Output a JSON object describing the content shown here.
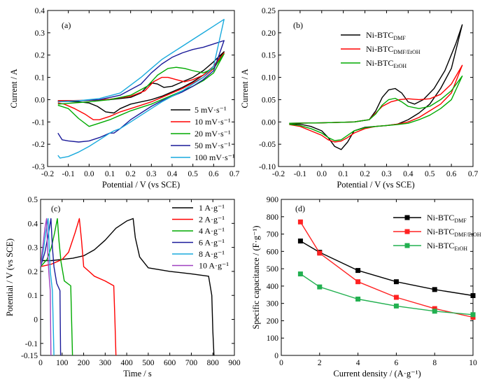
{
  "chart_data": [
    {
      "panel": "(a)",
      "type": "line",
      "xlabel": "Potential / V (vs SCE)",
      "ylabel": "Current / A",
      "xlim": [
        -0.2,
        0.7
      ],
      "ylim": [
        -0.3,
        0.4
      ],
      "xticks": [
        "-0.2",
        "-0.1",
        "0.0",
        "0.1",
        "0.2",
        "0.3",
        "0.4",
        "0.5",
        "0.6",
        "0.7"
      ],
      "yticks": [
        "-0.3",
        "-0.2",
        "-0.1",
        "0.0",
        "0.1",
        "0.2",
        "0.3",
        "0.4"
      ],
      "grid": false,
      "legend_position": "bottom-right",
      "series": [
        {
          "name": "5 mV·s⁻¹",
          "color": "#000000",
          "x": [
            -0.15,
            0.0,
            0.1,
            0.2,
            0.25,
            0.28,
            0.3,
            0.33,
            0.36,
            0.4,
            0.45,
            0.5,
            0.55,
            0.6,
            0.65,
            0.6,
            0.55,
            0.5,
            0.45,
            0.4,
            0.35,
            0.3,
            0.25,
            0.2,
            0.15,
            0.12,
            0.08,
            0.04,
            0.0,
            -0.05,
            -0.1,
            -0.15
          ],
          "y": [
            -0.005,
            -0.003,
            0.0,
            0.01,
            0.03,
            0.06,
            0.075,
            0.07,
            0.055,
            0.06,
            0.08,
            0.1,
            0.13,
            0.17,
            0.215,
            0.15,
            0.11,
            0.08,
            0.055,
            0.035,
            0.015,
            0.0,
            -0.01,
            -0.02,
            -0.04,
            -0.06,
            -0.055,
            -0.03,
            -0.015,
            -0.01,
            -0.008,
            -0.007
          ]
        },
        {
          "name": "10 mV·s⁻¹",
          "color": "#ff0000",
          "x": [
            -0.15,
            0.0,
            0.1,
            0.2,
            0.27,
            0.31,
            0.35,
            0.38,
            0.42,
            0.46,
            0.5,
            0.55,
            0.6,
            0.65,
            0.6,
            0.55,
            0.5,
            0.45,
            0.4,
            0.35,
            0.3,
            0.25,
            0.2,
            0.15,
            0.1,
            0.05,
            0.02,
            -0.02,
            -0.07,
            -0.12,
            -0.15
          ],
          "y": [
            -0.005,
            -0.003,
            0.002,
            0.015,
            0.04,
            0.08,
            0.1,
            0.1,
            0.09,
            0.08,
            0.09,
            0.11,
            0.15,
            0.21,
            0.14,
            0.1,
            0.075,
            0.05,
            0.03,
            0.01,
            -0.01,
            -0.025,
            -0.04,
            -0.055,
            -0.075,
            -0.09,
            -0.09,
            -0.065,
            -0.04,
            -0.02,
            -0.015
          ]
        },
        {
          "name": "20 mV·s⁻¹",
          "color": "#00aa00",
          "x": [
            -0.15,
            0.0,
            0.1,
            0.2,
            0.28,
            0.33,
            0.38,
            0.42,
            0.46,
            0.5,
            0.55,
            0.6,
            0.65,
            0.6,
            0.55,
            0.5,
            0.45,
            0.4,
            0.35,
            0.3,
            0.25,
            0.2,
            0.15,
            0.1,
            0.05,
            0.0,
            -0.05,
            -0.1,
            -0.15
          ],
          "y": [
            -0.02,
            -0.01,
            0.0,
            0.02,
            0.06,
            0.11,
            0.14,
            0.145,
            0.14,
            0.13,
            0.12,
            0.14,
            0.205,
            0.12,
            0.085,
            0.06,
            0.04,
            0.02,
            0.0,
            -0.02,
            -0.035,
            -0.05,
            -0.07,
            -0.09,
            -0.105,
            -0.12,
            -0.085,
            -0.04,
            -0.025
          ]
        },
        {
          "name": "50 mV·s⁻¹",
          "color": "#1a1a99",
          "x": [
            -0.15,
            -0.05,
            0.05,
            0.15,
            0.25,
            0.3,
            0.35,
            0.4,
            0.45,
            0.5,
            0.55,
            0.6,
            0.65,
            0.6,
            0.55,
            0.5,
            0.45,
            0.4,
            0.35,
            0.3,
            0.25,
            0.2,
            0.15,
            0.12,
            0.1,
            0.05,
            0.0,
            -0.05,
            -0.1,
            -0.13,
            -0.15
          ],
          "y": [
            -0.01,
            -0.005,
            0.0,
            0.02,
            0.07,
            0.12,
            0.16,
            0.19,
            0.21,
            0.225,
            0.235,
            0.25,
            0.265,
            0.13,
            0.09,
            0.06,
            0.035,
            0.015,
            -0.005,
            -0.03,
            -0.06,
            -0.09,
            -0.13,
            -0.15,
            -0.15,
            -0.17,
            -0.185,
            -0.19,
            -0.185,
            -0.18,
            -0.15
          ]
        },
        {
          "name": "100 mV·s⁻¹",
          "color": "#19aadd",
          "x": [
            -0.15,
            -0.05,
            0.05,
            0.15,
            0.25,
            0.3,
            0.35,
            0.4,
            0.45,
            0.5,
            0.55,
            0.6,
            0.65,
            0.6,
            0.55,
            0.5,
            0.45,
            0.4,
            0.35,
            0.3,
            0.25,
            0.2,
            0.15,
            0.12,
            0.1,
            0.05,
            0.0,
            -0.05,
            -0.1,
            -0.14,
            -0.15
          ],
          "y": [
            -0.01,
            -0.005,
            0.005,
            0.03,
            0.1,
            0.14,
            0.18,
            0.21,
            0.24,
            0.27,
            0.3,
            0.33,
            0.36,
            0.15,
            0.1,
            0.07,
            0.04,
            0.015,
            -0.01,
            -0.04,
            -0.07,
            -0.1,
            -0.13,
            -0.14,
            -0.15,
            -0.18,
            -0.21,
            -0.235,
            -0.255,
            -0.262,
            -0.25
          ]
        }
      ]
    },
    {
      "panel": "(b)",
      "type": "line",
      "xlabel": "Potential / V (vs SCE)",
      "ylabel": "Current / A",
      "xlim": [
        -0.2,
        0.7
      ],
      "ylim": [
        -0.1,
        0.25
      ],
      "xticks": [
        "-0.2",
        "-0.1",
        "0.0",
        "0.1",
        "0.2",
        "0.3",
        "0.4",
        "0.5",
        "0.6",
        "0.7"
      ],
      "yticks": [
        "-0.10",
        "-0.05",
        "0.00",
        "0.05",
        "0.10",
        "0.15",
        "0.20",
        "0.25"
      ],
      "grid": false,
      "legend_position": "top-left",
      "series": [
        {
          "name": "Ni-BTC",
          "name_sub": "DMF",
          "color": "#000000",
          "x": [
            -0.15,
            0.0,
            0.15,
            0.22,
            0.25,
            0.28,
            0.31,
            0.34,
            0.37,
            0.4,
            0.43,
            0.47,
            0.52,
            0.57,
            0.62,
            0.65,
            0.6,
            0.55,
            0.5,
            0.45,
            0.4,
            0.35,
            0.3,
            0.25,
            0.2,
            0.15,
            0.12,
            0.09,
            0.06,
            0.03,
            0.0,
            -0.05,
            -0.1,
            -0.15
          ],
          "y": [
            -0.003,
            -0.002,
            0.0,
            0.005,
            0.025,
            0.055,
            0.072,
            0.075,
            0.065,
            0.045,
            0.04,
            0.05,
            0.075,
            0.115,
            0.175,
            0.218,
            0.12,
            0.075,
            0.04,
            0.02,
            0.005,
            -0.005,
            -0.008,
            -0.01,
            -0.012,
            -0.02,
            -0.045,
            -0.062,
            -0.055,
            -0.035,
            -0.02,
            -0.01,
            -0.005,
            -0.004
          ]
        },
        {
          "name": "Ni-BTC",
          "name_sub": "DMF/EtOH",
          "color": "#ff0000",
          "x": [
            -0.15,
            0.0,
            0.15,
            0.22,
            0.25,
            0.28,
            0.32,
            0.36,
            0.4,
            0.45,
            0.5,
            0.55,
            0.6,
            0.65,
            0.6,
            0.55,
            0.5,
            0.45,
            0.4,
            0.35,
            0.3,
            0.25,
            0.2,
            0.15,
            0.12,
            0.09,
            0.06,
            0.03,
            0.0,
            -0.05,
            -0.1,
            -0.15
          ],
          "y": [
            -0.003,
            -0.002,
            0.0,
            0.005,
            0.02,
            0.035,
            0.045,
            0.05,
            0.052,
            0.05,
            0.052,
            0.062,
            0.085,
            0.127,
            0.065,
            0.04,
            0.025,
            0.01,
            0.0,
            -0.005,
            -0.008,
            -0.01,
            -0.015,
            -0.025,
            -0.035,
            -0.043,
            -0.045,
            -0.04,
            -0.03,
            -0.02,
            -0.01,
            -0.006
          ]
        },
        {
          "name": "Ni-BTC",
          "name_sub": "EtOH",
          "color": "#00aa00",
          "x": [
            -0.15,
            0.0,
            0.15,
            0.22,
            0.25,
            0.28,
            0.31,
            0.34,
            0.37,
            0.4,
            0.45,
            0.5,
            0.55,
            0.6,
            0.65,
            0.6,
            0.55,
            0.5,
            0.45,
            0.4,
            0.35,
            0.3,
            0.25,
            0.2,
            0.15,
            0.12,
            0.09,
            0.06,
            0.03,
            0.0,
            -0.05,
            -0.1,
            -0.15
          ],
          "y": [
            -0.003,
            -0.002,
            0.0,
            0.005,
            0.018,
            0.038,
            0.05,
            0.053,
            0.045,
            0.035,
            0.03,
            0.035,
            0.05,
            0.07,
            0.103,
            0.05,
            0.03,
            0.015,
            0.005,
            -0.003,
            -0.006,
            -0.008,
            -0.01,
            -0.013,
            -0.02,
            -0.03,
            -0.04,
            -0.042,
            -0.035,
            -0.025,
            -0.015,
            -0.008,
            -0.005
          ]
        }
      ]
    },
    {
      "panel": "(c)",
      "type": "line",
      "xlabel": "Time / s",
      "ylabel": "Potential / V (vs SCE)",
      "xlim": [
        0,
        900
      ],
      "ylim": [
        -0.15,
        0.5
      ],
      "xticks": [
        "0",
        "100",
        "200",
        "300",
        "400",
        "500",
        "600",
        "700",
        "800",
        "900"
      ],
      "yticks": [
        "-0.15",
        "-0.1",
        "0",
        "0.1",
        "0.2",
        "0.3",
        "0.4",
        "0.5"
      ],
      "grid": false,
      "legend_position": "top-right",
      "series": [
        {
          "name": "1 A·g⁻¹",
          "color": "#000000",
          "x": [
            0,
            50,
            100,
            150,
            200,
            250,
            300,
            350,
            400,
            430,
            440,
            460,
            500,
            600,
            700,
            780,
            795,
            800,
            805
          ],
          "y": [
            0.245,
            0.245,
            0.25,
            0.255,
            0.265,
            0.29,
            0.33,
            0.38,
            0.41,
            0.42,
            0.34,
            0.26,
            0.215,
            0.2,
            0.19,
            0.18,
            0.1,
            -0.05,
            -0.15
          ]
        },
        {
          "name": "2 A·g⁻¹",
          "color": "#ff0000",
          "x": [
            0,
            50,
            100,
            130,
            160,
            180,
            190,
            200,
            250,
            300,
            340,
            345,
            350
          ],
          "y": [
            0.22,
            0.23,
            0.25,
            0.28,
            0.36,
            0.42,
            0.33,
            0.22,
            0.18,
            0.16,
            0.14,
            0.0,
            -0.15
          ]
        },
        {
          "name": "4 A·g⁻¹",
          "color": "#00aa00",
          "x": [
            0,
            30,
            50,
            65,
            78,
            85,
            95,
            110,
            140,
            144,
            148
          ],
          "y": [
            0.22,
            0.25,
            0.3,
            0.36,
            0.42,
            0.33,
            0.24,
            0.16,
            0.14,
            0.0,
            -0.15
          ]
        },
        {
          "name": "6 A·g⁻¹",
          "color": "#1a1a99",
          "x": [
            0,
            20,
            35,
            48,
            55,
            62,
            75,
            90,
            93
          ],
          "y": [
            0.22,
            0.28,
            0.35,
            0.42,
            0.3,
            0.22,
            0.15,
            0.12,
            -0.15
          ]
        },
        {
          "name": "8 A·g⁻¹",
          "color": "#19aadd",
          "x": [
            0,
            15,
            25,
            35,
            40,
            45,
            55,
            62
          ],
          "y": [
            0.22,
            0.3,
            0.37,
            0.42,
            0.3,
            0.2,
            0.12,
            -0.15
          ]
        },
        {
          "name": "10 A·g⁻¹",
          "color": "#a040c0",
          "x": [
            0,
            10,
            20,
            28,
            32,
            38,
            45,
            48
          ],
          "y": [
            0.22,
            0.3,
            0.38,
            0.42,
            0.3,
            0.2,
            0.12,
            -0.15
          ]
        }
      ]
    },
    {
      "panel": "(d)",
      "type": "line",
      "xlabel": "Current density / (A·g⁻¹)",
      "ylabel": "Specific capacitance / (F·g⁻¹)",
      "xlim": [
        0,
        10
      ],
      "ylim": [
        0,
        900
      ],
      "xticks": [
        "0",
        "2",
        "4",
        "6",
        "8",
        "10"
      ],
      "yticks": [
        "0",
        "100",
        "200",
        "300",
        "400",
        "500",
        "600",
        "700",
        "800",
        "900"
      ],
      "grid": false,
      "legend_position": "top-right",
      "markers": "square",
      "series": [
        {
          "name": "Ni-BTC",
          "name_sub": "DMF",
          "color": "#000000",
          "x": [
            1,
            2,
            4,
            6,
            8,
            10
          ],
          "y": [
            660,
            595,
            490,
            425,
            380,
            345
          ]
        },
        {
          "name": "Ni-BTC",
          "name_sub": "DMF/EtOH",
          "color": "#ff2222",
          "x": [
            1,
            2,
            4,
            6,
            8,
            10
          ],
          "y": [
            770,
            590,
            425,
            335,
            270,
            220
          ]
        },
        {
          "name": "Ni-BTC",
          "name_sub": "EtOH",
          "color": "#22b050",
          "x": [
            1,
            2,
            4,
            6,
            8,
            10
          ],
          "y": [
            470,
            395,
            325,
            285,
            255,
            235
          ]
        }
      ]
    }
  ]
}
